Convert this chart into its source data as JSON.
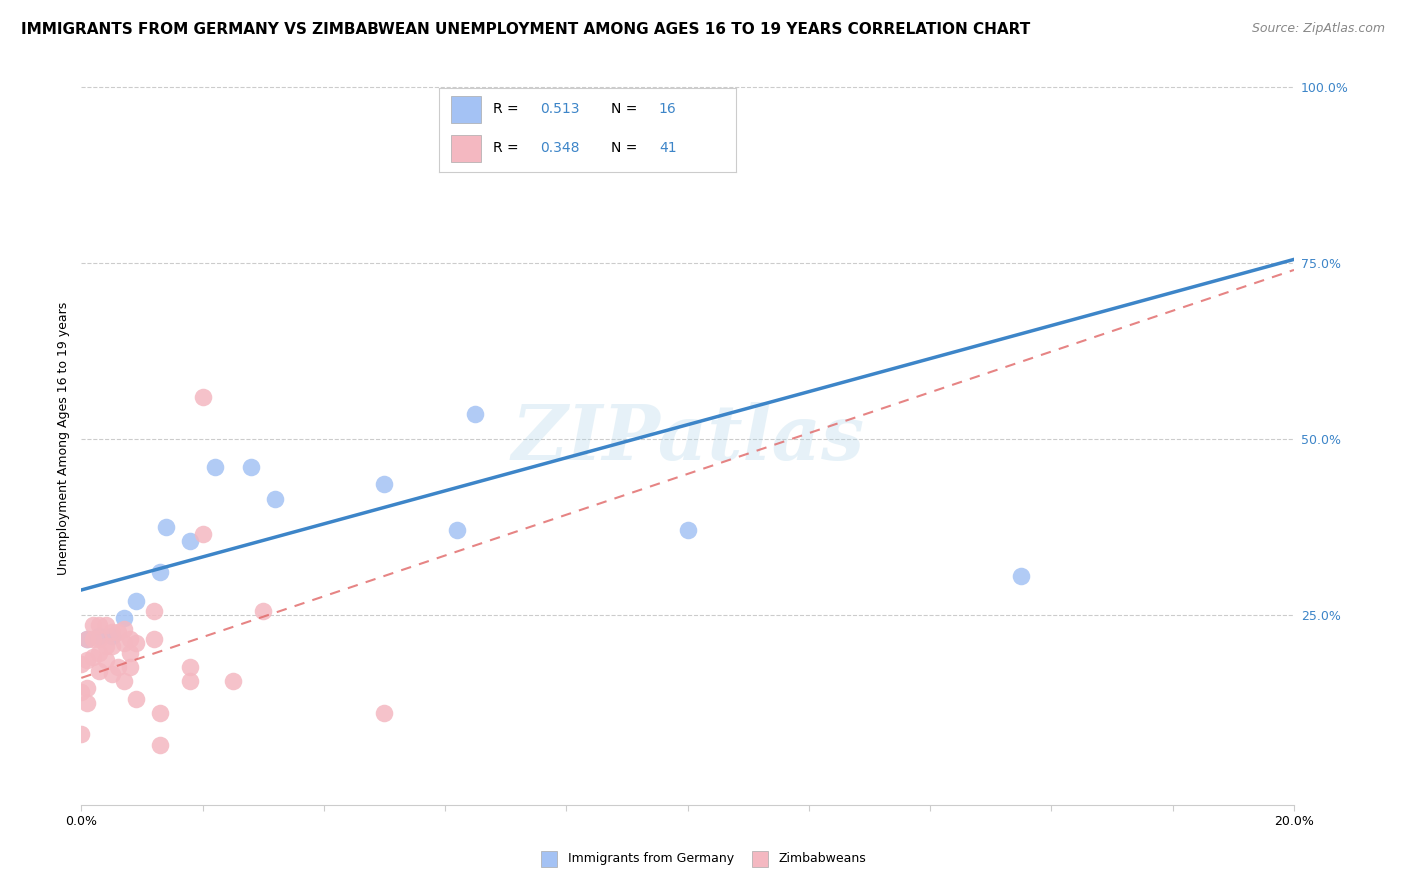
{
  "title": "IMMIGRANTS FROM GERMANY VS ZIMBABWEAN UNEMPLOYMENT AMONG AGES 16 TO 19 YEARS CORRELATION CHART",
  "source": "Source: ZipAtlas.com",
  "ylabel": "Unemployment Among Ages 16 to 19 years",
  "xlim": [
    0.0,
    0.2
  ],
  "ylim": [
    -0.02,
    1.02
  ],
  "watermark": "ZIPatlas",
  "legend_blue_label": "Immigrants from Germany",
  "legend_pink_label": "Zimbabweans",
  "r_blue": "0.513",
  "n_blue": "16",
  "r_pink": "0.348",
  "n_pink": "41",
  "blue_scatter_color": "#a4c2f4",
  "pink_scatter_color": "#f4b8c1",
  "blue_line_color": "#3d85c8",
  "pink_line_color": "#cc4125",
  "pink_dash_color": "#e06666",
  "blue_line_y0": 0.285,
  "blue_line_y1": 0.755,
  "pink_line_y0": 0.16,
  "pink_line_y1": 0.74,
  "ytick_labels": [
    "100.0%",
    "75.0%",
    "50.0%",
    "25.0%"
  ],
  "ytick_values": [
    1.0,
    0.75,
    0.5,
    0.25
  ],
  "xtick_labels": [
    "0.0%",
    "",
    "",
    "",
    "",
    "",
    "",
    "",
    "",
    "",
    "20.0%"
  ],
  "xtick_values": [
    0.0,
    0.02,
    0.04,
    0.06,
    0.08,
    0.1,
    0.12,
    0.14,
    0.16,
    0.18,
    0.2
  ],
  "blue_x": [
    0.001,
    0.003,
    0.005,
    0.007,
    0.009,
    0.013,
    0.014,
    0.018,
    0.022,
    0.028,
    0.032,
    0.05,
    0.062,
    0.065,
    0.1,
    0.155
  ],
  "blue_y": [
    0.215,
    0.22,
    0.22,
    0.245,
    0.27,
    0.31,
    0.375,
    0.355,
    0.46,
    0.46,
    0.415,
    0.435,
    0.37,
    0.535,
    0.37,
    0.305
  ],
  "pink_x": [
    0.0,
    0.0,
    0.0,
    0.001,
    0.001,
    0.001,
    0.001,
    0.002,
    0.002,
    0.002,
    0.003,
    0.003,
    0.003,
    0.003,
    0.004,
    0.004,
    0.004,
    0.005,
    0.005,
    0.005,
    0.006,
    0.006,
    0.007,
    0.007,
    0.007,
    0.008,
    0.008,
    0.008,
    0.009,
    0.009,
    0.012,
    0.012,
    0.013,
    0.013,
    0.018,
    0.018,
    0.02,
    0.02,
    0.025,
    0.03,
    0.05
  ],
  "pink_y": [
    0.18,
    0.14,
    0.08,
    0.215,
    0.185,
    0.145,
    0.125,
    0.235,
    0.215,
    0.19,
    0.235,
    0.215,
    0.195,
    0.17,
    0.235,
    0.205,
    0.185,
    0.225,
    0.205,
    0.165,
    0.225,
    0.175,
    0.23,
    0.21,
    0.155,
    0.215,
    0.195,
    0.175,
    0.21,
    0.13,
    0.255,
    0.215,
    0.11,
    0.065,
    0.175,
    0.155,
    0.56,
    0.365,
    0.155,
    0.255,
    0.11
  ],
  "title_fontsize": 11,
  "source_fontsize": 9,
  "axis_label_fontsize": 9,
  "tick_fontsize": 9
}
